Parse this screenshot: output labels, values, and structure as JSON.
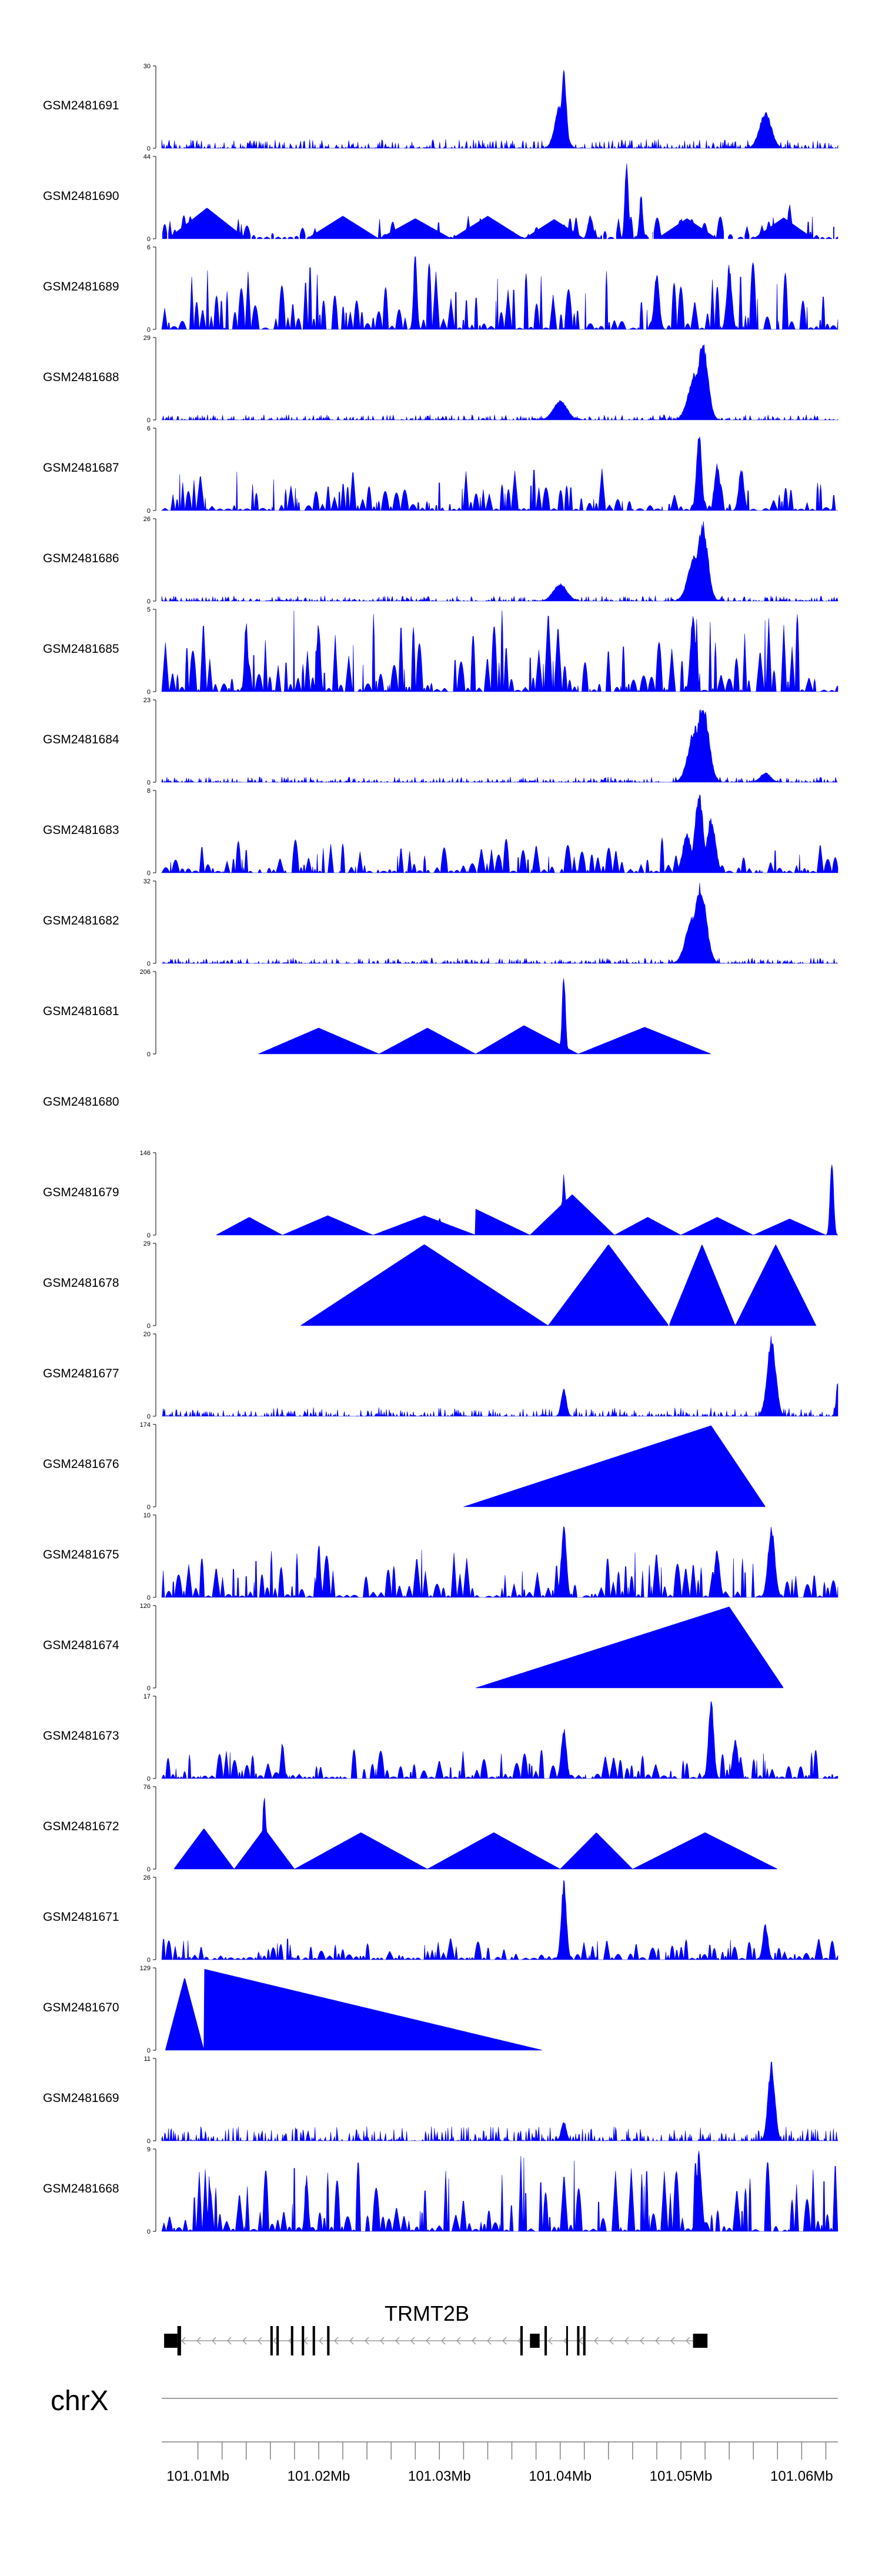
{
  "chart_data": {
    "type": "area",
    "region": {
      "chrom": "chrX",
      "start": 101.007,
      "end": 101.063
    },
    "tracks": [
      {
        "name": "GSM2481691",
        "ymax": "30",
        "ymin": "0",
        "max": 30,
        "noise": 0.05,
        "style": "dense",
        "peaks": [
          [
            101.0403,
            1.0,
            0.0003
          ],
          [
            101.04,
            0.55,
            0.0006
          ],
          [
            101.057,
            0.45,
            0.0007
          ]
        ]
      },
      {
        "name": "GSM2481690",
        "ymax": "44",
        "ymin": "0",
        "max": 44,
        "style": "tri",
        "tris": [
          [
            101.0075,
            101.014,
            0.38
          ],
          [
            101.019,
            101.025,
            0.28
          ],
          [
            101.025,
            101.031,
            0.25
          ],
          [
            101.031,
            101.037,
            0.28
          ],
          [
            101.037,
            101.042,
            0.24
          ],
          [
            101.048,
            101.053,
            0.25
          ],
          [
            101.056,
            101.061,
            0.26
          ]
        ],
        "peaks": [
          [
            101.0455,
            1.0,
            0.0002
          ],
          [
            101.0467,
            0.55,
            0.0002
          ],
          [
            101.059,
            0.45,
            0.0002
          ],
          [
            101.0425,
            0.3,
            0.0003
          ],
          [
            101.05,
            0.25,
            0.0004
          ]
        ],
        "noise": 0.12
      },
      {
        "name": "GSM2481689",
        "ymax": "6",
        "ymin": "0",
        "max": 6,
        "noise": 0.35,
        "style": "spiky",
        "peaks": [
          [
            101.028,
            1.0,
            0.0002
          ],
          [
            101.048,
            0.7,
            0.0003
          ],
          [
            101.054,
            0.8,
            0.0003
          ]
        ]
      },
      {
        "name": "GSM2481688",
        "ymax": "29",
        "ymin": "0",
        "max": 29,
        "noise": 0.03,
        "style": "dense",
        "peaks": [
          [
            101.0518,
            1.0,
            0.0006
          ],
          [
            101.0512,
            0.6,
            0.0008
          ],
          [
            101.04,
            0.25,
            0.0008
          ]
        ]
      },
      {
        "name": "GSM2481687",
        "ymax": "6",
        "ymin": "0",
        "max": 6,
        "noise": 0.22,
        "style": "spiky",
        "peaks": [
          [
            101.0515,
            1.0,
            0.0003
          ],
          [
            101.053,
            0.6,
            0.0003
          ],
          [
            101.055,
            0.55,
            0.0003
          ]
        ]
      },
      {
        "name": "GSM2481686",
        "ymax": "26",
        "ymin": "0",
        "max": 26,
        "noise": 0.03,
        "style": "dense",
        "peaks": [
          [
            101.0518,
            1.0,
            0.0006
          ],
          [
            101.0512,
            0.6,
            0.0008
          ],
          [
            101.04,
            0.22,
            0.0008
          ]
        ]
      },
      {
        "name": "GSM2481685",
        "ymax": "5",
        "ymin": "0",
        "max": 5,
        "noise": 0.45,
        "style": "spiky",
        "peaks": [
          [
            101.051,
            1.0,
            0.0003
          ],
          [
            101.02,
            0.9,
            0.0002
          ],
          [
            101.014,
            0.9,
            0.0002
          ]
        ]
      },
      {
        "name": "GSM2481684",
        "ymax": "23",
        "ymin": "0",
        "max": 23,
        "noise": 0.03,
        "style": "dense",
        "peaks": [
          [
            101.0518,
            1.0,
            0.0007
          ],
          [
            101.0512,
            0.7,
            0.0008
          ],
          [
            101.057,
            0.12,
            0.0006
          ]
        ]
      },
      {
        "name": "GSM2481683",
        "ymax": "8",
        "ymin": "0",
        "max": 8,
        "noise": 0.18,
        "style": "spiky",
        "peaks": [
          [
            101.0515,
            1.0,
            0.0005
          ],
          [
            101.0525,
            0.7,
            0.0005
          ],
          [
            101.0505,
            0.5,
            0.0005
          ]
        ]
      },
      {
        "name": "GSM2481682",
        "ymax": "32",
        "ymin": "0",
        "max": 32,
        "noise": 0.03,
        "style": "dense",
        "peaks": [
          [
            101.0516,
            1.0,
            0.0007
          ],
          [
            101.051,
            0.6,
            0.0008
          ]
        ]
      },
      {
        "name": "GSM2481681",
        "ymax": "206",
        "ymin": "0",
        "max": 206,
        "style": "tri",
        "tris": [
          [
            101.015,
            101.025,
            0.32
          ],
          [
            101.025,
            101.033,
            0.32
          ],
          [
            101.033,
            101.0415,
            0.35
          ],
          [
            101.0415,
            101.0525,
            0.33
          ]
        ],
        "peaks": [
          [
            101.0403,
            1.0,
            0.0002
          ]
        ],
        "noise": 0
      },
      {
        "name": "GSM2481680",
        "ymax": "",
        "ymin": "",
        "max": 1,
        "style": "empty",
        "noise": 0
      },
      {
        "name": "GSM2481679",
        "ymax": "146",
        "ymin": "0",
        "max": 146,
        "style": "tri",
        "tris": [
          [
            101.0115,
            101.017,
            0.22
          ],
          [
            101.017,
            101.0245,
            0.24
          ],
          [
            101.0245,
            101.033,
            0.24
          ],
          [
            101.033,
            101.0375,
            0.32
          ],
          [
            101.0375,
            101.0445,
            0.5
          ],
          [
            101.0445,
            101.05,
            0.22
          ],
          [
            101.05,
            101.056,
            0.22
          ],
          [
            101.056,
            101.062,
            0.2
          ]
        ],
        "peaks": [
          [
            101.0403,
            0.75,
            0.0002
          ],
          [
            101.0625,
            1.0,
            0.0002
          ],
          [
            101.03,
            0.22,
            0.0002
          ]
        ],
        "noise": 0
      },
      {
        "name": "GSM2481678",
        "ymax": "29",
        "ymin": "0",
        "max": 29,
        "style": "tri",
        "tris": [
          [
            101.0185,
            101.039,
            1.0
          ],
          [
            101.039,
            101.049,
            1.0
          ],
          [
            101.049,
            101.0545,
            1.0
          ],
          [
            101.0545,
            101.0612,
            1.0
          ]
        ],
        "peaks": [],
        "noise": 0
      },
      {
        "name": "GSM2481677",
        "ymax": "20",
        "ymin": "0",
        "max": 20,
        "noise": 0.05,
        "style": "dense",
        "peaks": [
          [
            101.0575,
            1.0,
            0.0005
          ],
          [
            101.0403,
            0.35,
            0.0003
          ],
          [
            101.063,
            0.45,
            0.0002
          ]
        ]
      },
      {
        "name": "GSM2481676",
        "ymax": "174",
        "ymin": "0",
        "max": 174,
        "style": "tri",
        "tris": [
          [
            101.032,
            101.057,
            1.0
          ]
        ],
        "peaks": [],
        "noise": 0
      },
      {
        "name": "GSM2481675",
        "ymax": "10",
        "ymin": "0",
        "max": 10,
        "noise": 0.25,
        "style": "spiky",
        "peaks": [
          [
            101.0403,
            0.9,
            0.0003
          ],
          [
            101.0575,
            0.9,
            0.0004
          ],
          [
            101.02,
            0.7,
            0.0002
          ],
          [
            101.053,
            0.6,
            0.0003
          ]
        ]
      },
      {
        "name": "GSM2481674",
        "ymax": "120",
        "ymin": "0",
        "max": 120,
        "style": "tri",
        "tris": [
          [
            101.033,
            101.0585,
            1.0
          ]
        ],
        "peaks": [],
        "noise": 0
      },
      {
        "name": "GSM2481673",
        "ymax": "17",
        "ymin": "0",
        "max": 17,
        "noise": 0.15,
        "style": "spiky",
        "peaks": [
          [
            101.0525,
            1.0,
            0.0003
          ],
          [
            101.0403,
            0.65,
            0.0003
          ],
          [
            101.0545,
            0.5,
            0.0003
          ],
          [
            101.017,
            0.45,
            0.0002
          ]
        ]
      },
      {
        "name": "GSM2481672",
        "ymax": "76",
        "ymin": "0",
        "max": 76,
        "style": "tri",
        "tris": [
          [
            101.008,
            101.013,
            0.5
          ],
          [
            101.013,
            101.018,
            0.5
          ],
          [
            101.018,
            101.029,
            0.45
          ],
          [
            101.029,
            101.04,
            0.45
          ],
          [
            101.04,
            101.046,
            0.45
          ],
          [
            101.046,
            101.058,
            0.45
          ]
        ],
        "peaks": [
          [
            101.0155,
            1.0,
            0.0002
          ]
        ],
        "noise": 0
      },
      {
        "name": "GSM2481671",
        "ymax": "26",
        "ymin": "0",
        "max": 26,
        "noise": 0.12,
        "style": "spiky",
        "peaks": [
          [
            101.0403,
            1.0,
            0.0003
          ],
          [
            101.057,
            0.45,
            0.0003
          ]
        ]
      },
      {
        "name": "GSM2481670",
        "ymax": "129",
        "ymin": "0",
        "max": 129,
        "style": "tri",
        "tris": [
          [
            101.0073,
            101.0105,
            0.9
          ],
          [
            101.0105,
            101.0385,
            1.0
          ]
        ],
        "peaks": [],
        "noise": 0
      },
      {
        "name": "GSM2481669",
        "ymax": "11",
        "ymin": "0",
        "max": 11,
        "noise": 0.08,
        "style": "dense",
        "peaks": [
          [
            101.0575,
            1.0,
            0.0004
          ],
          [
            101.0403,
            0.25,
            0.0003
          ]
        ]
      },
      {
        "name": "GSM2481668",
        "ymax": "9",
        "ymin": "0",
        "max": 9,
        "noise": 0.4,
        "style": "spiky",
        "peaks": [
          [
            101.0515,
            1.0,
            0.0003
          ],
          [
            101.019,
            0.7,
            0.0002
          ],
          [
            101.011,
            0.6,
            0.0002
          ]
        ]
      }
    ],
    "gene": {
      "name": "TRMT2B",
      "strand": "-",
      "start": 101.0072,
      "end": 101.0522,
      "exons": [
        [
          101.0072,
          101.0083
        ],
        [
          101.0083,
          101.0086
        ],
        [
          101.016,
          101.0162
        ],
        [
          101.0165,
          101.0167
        ],
        [
          101.0177,
          101.0179
        ],
        [
          101.0186,
          101.0188
        ],
        [
          101.0195,
          101.0197
        ],
        [
          101.0207,
          101.0209
        ],
        [
          101.0367,
          101.0369
        ],
        [
          101.0375,
          101.0383
        ],
        [
          101.0387,
          101.0389
        ],
        [
          101.0405,
          101.0406
        ],
        [
          101.0414,
          101.0416
        ],
        [
          101.0419,
          101.0421
        ],
        [
          101.051,
          101.0522
        ]
      ]
    },
    "chrom_label": "chrX",
    "axis": {
      "ticks": [
        101.01,
        101.012,
        101.014,
        101.016,
        101.018,
        101.02,
        101.022,
        101.024,
        101.026,
        101.028,
        101.03,
        101.032,
        101.034,
        101.036,
        101.038,
        101.04,
        101.042,
        101.044,
        101.046,
        101.048,
        101.05,
        101.052,
        101.054,
        101.056,
        101.058,
        101.06,
        101.062
      ],
      "labels": [
        {
          "pos": 101.01,
          "text": "101.01Mb"
        },
        {
          "pos": 101.02,
          "text": "101.02Mb"
        },
        {
          "pos": 101.03,
          "text": "101.03Mb"
        },
        {
          "pos": 101.04,
          "text": "101.04Mb"
        },
        {
          "pos": 101.05,
          "text": "101.05Mb"
        },
        {
          "pos": 101.06,
          "text": "101.06Mb"
        }
      ]
    },
    "colors": {
      "fill": "#0000ff",
      "line": "#000000",
      "axis": "#808080",
      "intron": "#9a9a9a"
    }
  }
}
